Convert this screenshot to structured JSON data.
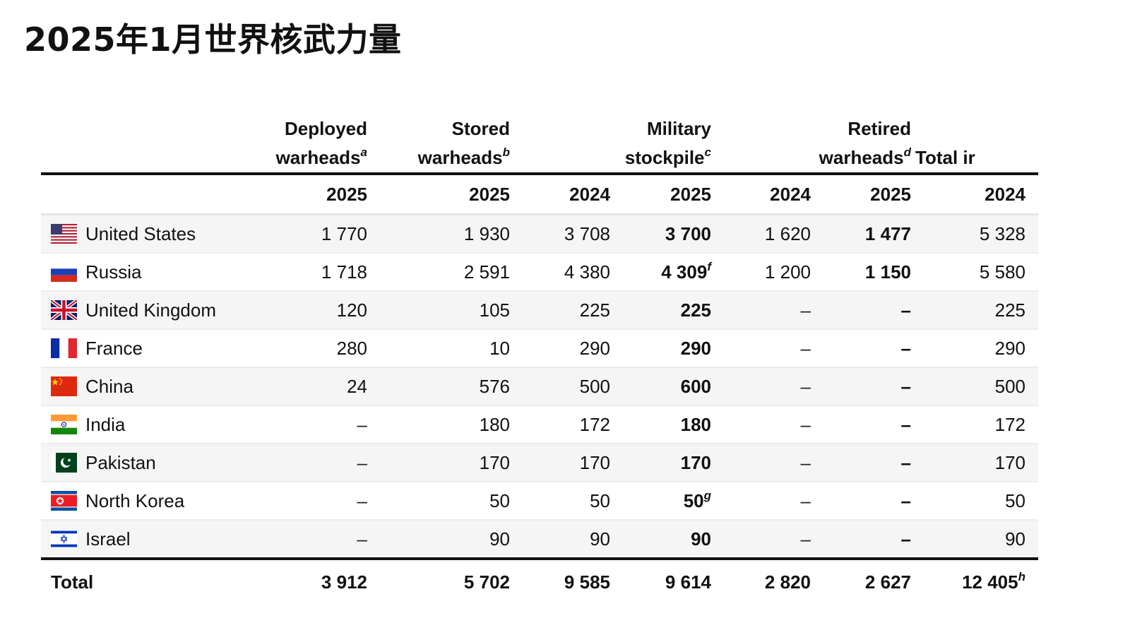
{
  "title": "2025年1月世界核武力量",
  "headers": {
    "deployed": {
      "line1": "Deployed",
      "line2": "warheads",
      "note": "a"
    },
    "stored": {
      "line1": "Stored",
      "line2": "warheads",
      "note": "b"
    },
    "military": {
      "line1": "Military",
      "line2": "stockpile",
      "note": "c"
    },
    "retired": {
      "line1": "Retired",
      "line2": "warheads",
      "note": "d"
    },
    "total": {
      "line1": "",
      "line2": "Total ir"
    }
  },
  "years": {
    "deployed": "2025",
    "stored": "2025",
    "military_2024": "2024",
    "military_2025": "2025",
    "retired_2024": "2024",
    "retired_2025": "2025",
    "total_2024": "2024"
  },
  "rows": [
    {
      "country": "United States",
      "flag": "us-flag-icon",
      "deployed": "1 770",
      "stored": "1 930",
      "military_2024": "3 708",
      "military_2025": "3 700",
      "military_2025_note": "",
      "retired_2024": "1 620",
      "retired_2025": "1 477",
      "total_2024": "5 328"
    },
    {
      "country": "Russia",
      "flag": "russia-flag-icon",
      "deployed": "1 718",
      "stored": "2 591",
      "military_2024": "4 380",
      "military_2025": "4 309",
      "military_2025_note": "f",
      "retired_2024": "1 200",
      "retired_2025": "1 150",
      "total_2024": "5 580"
    },
    {
      "country": "United Kingdom",
      "flag": "uk-flag-icon",
      "deployed": "120",
      "stored": "105",
      "military_2024": "225",
      "military_2025": "225",
      "military_2025_note": "",
      "retired_2024": "–",
      "retired_2025": "–",
      "total_2024": "225"
    },
    {
      "country": "France",
      "flag": "france-flag-icon",
      "deployed": "280",
      "stored": "10",
      "military_2024": "290",
      "military_2025": "290",
      "military_2025_note": "",
      "retired_2024": "–",
      "retired_2025": "–",
      "total_2024": "290"
    },
    {
      "country": "China",
      "flag": "china-flag-icon",
      "deployed": "24",
      "stored": "576",
      "military_2024": "500",
      "military_2025": "600",
      "military_2025_note": "",
      "retired_2024": "–",
      "retired_2025": "–",
      "total_2024": "500"
    },
    {
      "country": "India",
      "flag": "india-flag-icon",
      "deployed": "–",
      "stored": "180",
      "military_2024": "172",
      "military_2025": "180",
      "military_2025_note": "",
      "retired_2024": "–",
      "retired_2025": "–",
      "total_2024": "172"
    },
    {
      "country": "Pakistan",
      "flag": "pakistan-flag-icon",
      "deployed": "–",
      "stored": "170",
      "military_2024": "170",
      "military_2025": "170",
      "military_2025_note": "",
      "retired_2024": "–",
      "retired_2025": "–",
      "total_2024": "170"
    },
    {
      "country": "North Korea",
      "flag": "north-korea-flag-icon",
      "deployed": "–",
      "stored": "50",
      "military_2024": "50",
      "military_2025": "50",
      "military_2025_note": "g",
      "retired_2024": "–",
      "retired_2025": "–",
      "total_2024": "50"
    },
    {
      "country": "Israel",
      "flag": "israel-flag-icon",
      "deployed": "–",
      "stored": "90",
      "military_2024": "90",
      "military_2025": "90",
      "military_2025_note": "",
      "retired_2024": "–",
      "retired_2025": "–",
      "total_2024": "90"
    }
  ],
  "total": {
    "label": "Total",
    "deployed": "3 912",
    "stored": "5 702",
    "military_2024": "9 585",
    "military_2025": "9 614",
    "retired_2024": "2 820",
    "retired_2025": "2 627",
    "total_2024": "12 405",
    "total_2024_note": "h"
  }
}
